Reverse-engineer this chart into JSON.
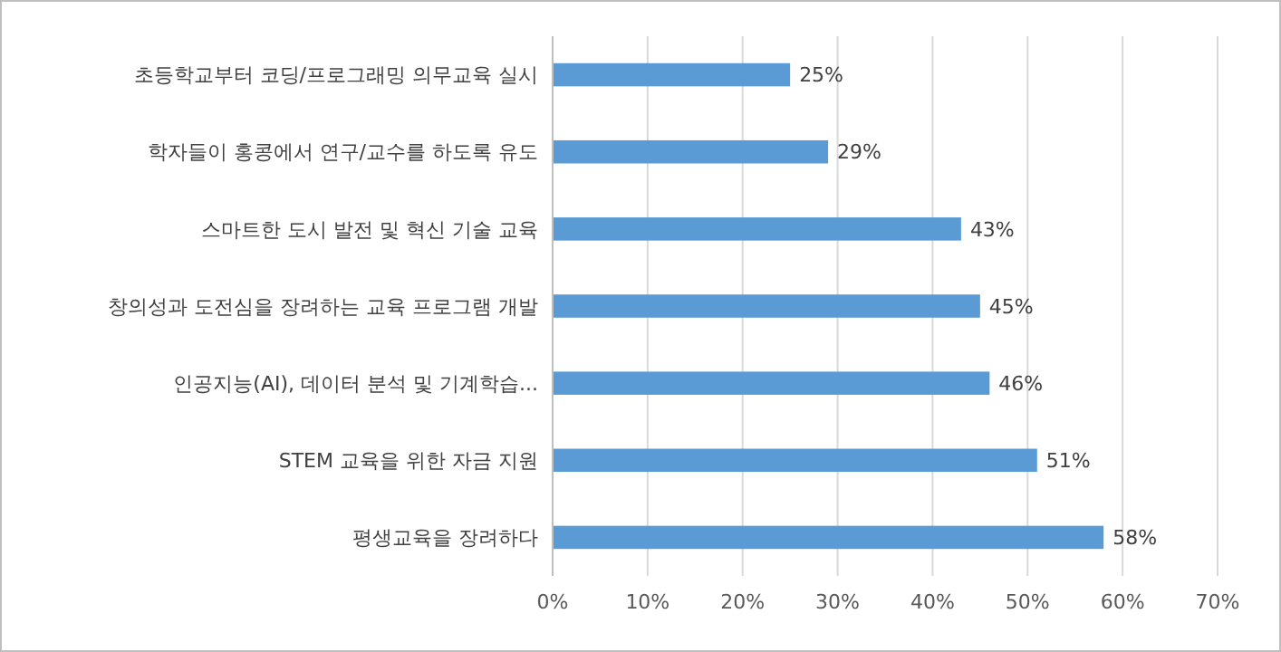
{
  "chart_data": {
    "type": "bar",
    "orientation": "horizontal",
    "categories": [
      "초등학교부터 코딩/프로그래밍 의무교육 실시",
      "학자들이 홍콩에서 연구/교수를 하도록 유도",
      "스마트한 도시 발전 및 혁신 기술 교육",
      "창의성과 도전심을 장려하는 교육 프로그램 개발",
      "인공지능(AI), 데이터 분석 및 기계학습...",
      "STEM 교육을 위한 자금 지원",
      "평생교육을 장려하다"
    ],
    "values": [
      25,
      29,
      43,
      45,
      46,
      51,
      58
    ],
    "value_labels": [
      "25%",
      "29%",
      "43%",
      "45%",
      "46%",
      "51%",
      "58%"
    ],
    "color": "#5b9bd5",
    "xlim": [
      0,
      70
    ],
    "xticks": [
      {
        "value": 0,
        "label": "0%"
      },
      {
        "value": 10,
        "label": "10%"
      },
      {
        "value": 20,
        "label": "20%"
      },
      {
        "value": 30,
        "label": "30%"
      },
      {
        "value": 40,
        "label": "40%"
      },
      {
        "value": 50,
        "label": "50%"
      },
      {
        "value": 60,
        "label": "60%"
      },
      {
        "value": 70,
        "label": "70%"
      }
    ],
    "grid": "x"
  }
}
